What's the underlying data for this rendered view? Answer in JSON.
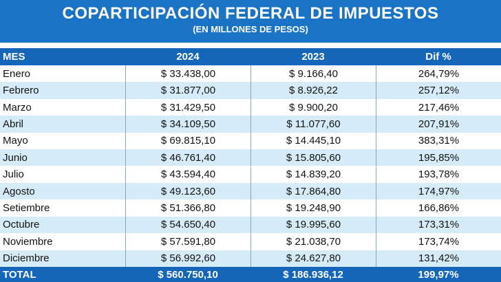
{
  "header": {
    "title": "COPARTICIPACIÓN FEDERAL DE IMPUESTOS",
    "subtitle": "(EN MILLONES DE PESOS)"
  },
  "table": {
    "columns": [
      "MES",
      "2024",
      "2023",
      "Dif %"
    ],
    "rows": [
      [
        "Enero",
        "$ 33.438,00",
        "$ 9.166,40",
        "264,79%"
      ],
      [
        "Febrero",
        "$ 31.877,00",
        "$ 8.926,22",
        "257,12%"
      ],
      [
        "Marzo",
        "$ 31.429,50",
        "$ 9.900,20",
        "217,46%"
      ],
      [
        "Abril",
        "$ 34.109,50",
        "$ 11.077,60",
        "207,91%"
      ],
      [
        "Mayo",
        "$ 69.815,10",
        "$ 14.445,10",
        "383,31%"
      ],
      [
        "Junio",
        "$ 46.761,40",
        "$ 15.805,60",
        "195,85%"
      ],
      [
        "Julio",
        "$ 43.594,40",
        "$ 14.839,20",
        "193,78%"
      ],
      [
        "Agosto",
        "$ 49.123,60",
        "$ 17.864,80",
        "174,97%"
      ],
      [
        "Setiembre",
        "$ 51.366,80",
        "$ 19.248,90",
        "166,86%"
      ],
      [
        "Octubre",
        "$ 54.650,40",
        "$ 19.995,60",
        "173,31%"
      ],
      [
        "Noviembre",
        "$ 57.591,80",
        "$ 21.038,70",
        "173,74%"
      ],
      [
        "Diciembre",
        "$ 56.992,60",
        "$ 24.627,80",
        "131,42%"
      ]
    ],
    "total": [
      "TOTAL",
      "$ 560.750,10",
      "$ 186.936,12",
      "199,97%"
    ]
  }
}
